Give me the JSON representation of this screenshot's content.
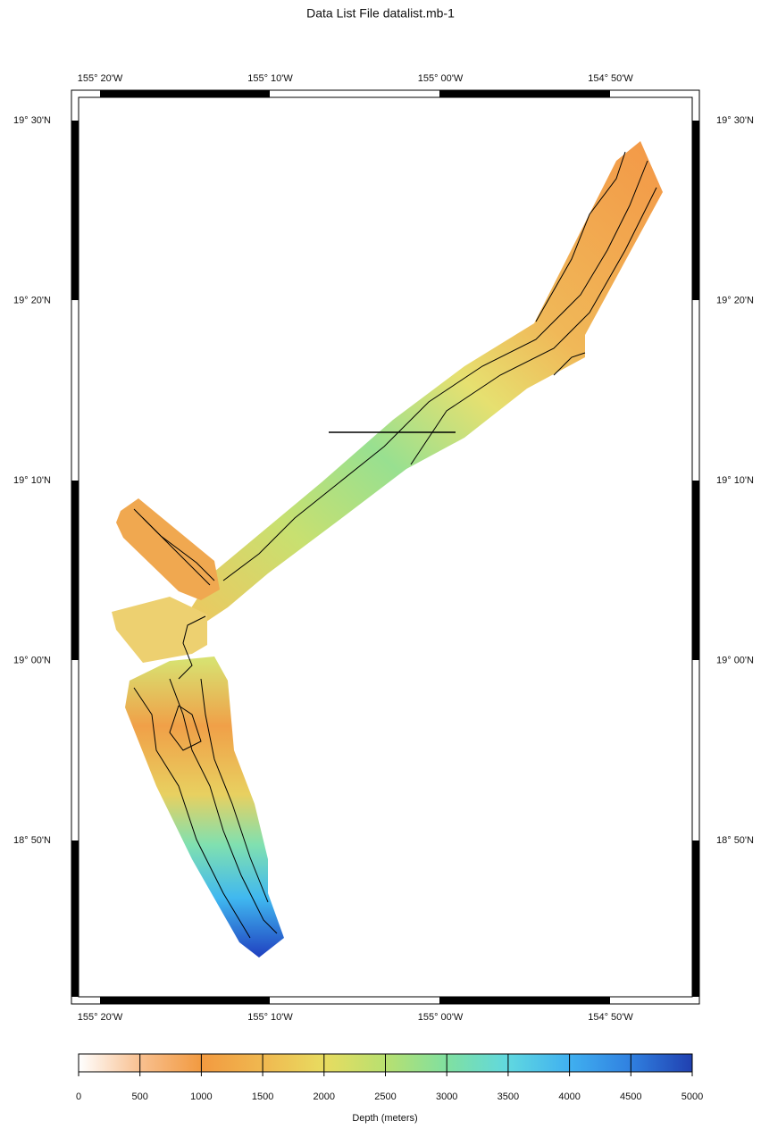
{
  "title": "Data List File datalist.mb-1",
  "map": {
    "x_labels": [
      "155° 20'W",
      "155° 10'W",
      "155° 00'W",
      "154° 50'W"
    ],
    "y_labels": [
      "19° 30'N",
      "19° 20'N",
      "19° 10'N",
      "19° 00'N",
      "18° 50'N"
    ]
  },
  "colorbar": {
    "label": "Depth (meters)",
    "range": [
      0,
      5000
    ],
    "ticks": [
      0,
      500,
      1000,
      1500,
      2000,
      2500,
      3000,
      3500,
      4000,
      4500,
      5000
    ]
  }
}
